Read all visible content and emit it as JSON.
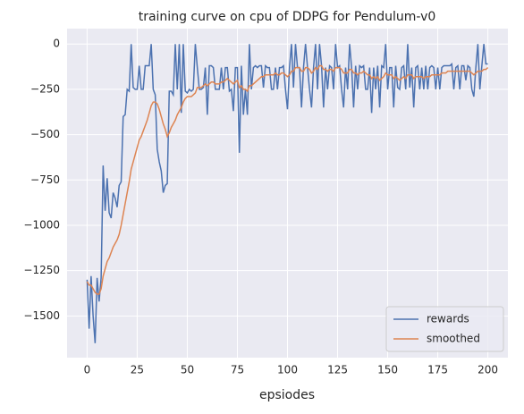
{
  "chart_data": {
    "type": "line",
    "title": "training curve on cpu of DDPG for Pendulum-v0",
    "x_label": "epsiodes",
    "x": [
      0,
      1,
      2,
      3,
      4,
      5,
      6,
      7,
      8,
      9,
      10,
      11,
      12,
      13,
      14,
      15,
      16,
      17,
      18,
      19,
      20,
      21,
      22,
      23,
      24,
      25,
      26,
      27,
      28,
      29,
      30,
      31,
      32,
      33,
      34,
      35,
      36,
      37,
      38,
      39,
      40,
      41,
      42,
      43,
      44,
      45,
      46,
      47,
      48,
      49,
      50,
      51,
      52,
      53,
      54,
      55,
      56,
      57,
      58,
      59,
      60,
      61,
      62,
      63,
      64,
      65,
      66,
      67,
      68,
      69,
      70,
      71,
      72,
      73,
      74,
      75,
      76,
      77,
      78,
      79,
      80,
      81,
      82,
      83,
      84,
      85,
      86,
      87,
      88,
      89,
      90,
      91,
      92,
      93,
      94,
      95,
      96,
      97,
      98,
      99,
      100,
      101,
      102,
      103,
      104,
      105,
      106,
      107,
      108,
      109,
      110,
      111,
      112,
      113,
      114,
      115,
      116,
      117,
      118,
      119,
      120,
      121,
      122,
      123,
      124,
      125,
      126,
      127,
      128,
      129,
      130,
      131,
      132,
      133,
      134,
      135,
      136,
      137,
      138,
      139,
      140,
      141,
      142,
      143,
      144,
      145,
      146,
      147,
      148,
      149,
      150,
      151,
      152,
      153,
      154,
      155,
      156,
      157,
      158,
      159,
      160,
      161,
      162,
      163,
      164,
      165,
      166,
      167,
      168,
      169,
      170,
      171,
      172,
      173,
      174,
      175,
      176,
      177,
      178,
      179,
      180,
      181,
      182,
      183,
      184,
      185,
      186,
      187,
      188,
      189,
      190,
      191,
      192,
      193,
      194,
      195,
      196,
      197,
      198,
      199,
      200
    ],
    "series": [
      {
        "name": "rewards",
        "color": "#4c72b0",
        "values": [
          -1300,
          -1570,
          -1280,
          -1500,
          -1650,
          -1290,
          -1420,
          -1290,
          -670,
          -920,
          -740,
          -930,
          -960,
          -820,
          -850,
          -900,
          -780,
          -760,
          -400,
          -390,
          -250,
          -260,
          0,
          -240,
          -250,
          -250,
          -120,
          -250,
          -250,
          -120,
          -120,
          -120,
          0,
          -250,
          -280,
          -580,
          -650,
          -700,
          -820,
          -780,
          -770,
          -260,
          -260,
          -280,
          0,
          -250,
          0,
          -380,
          0,
          -260,
          -270,
          -250,
          -260,
          -250,
          0,
          -130,
          -250,
          -250,
          -240,
          -130,
          -390,
          -120,
          -120,
          -130,
          -250,
          -250,
          -250,
          -130,
          -250,
          -130,
          -130,
          -260,
          -250,
          -370,
          -130,
          -130,
          -600,
          -120,
          -390,
          -250,
          -390,
          0,
          -250,
          -130,
          -120,
          -130,
          -120,
          -120,
          -240,
          -120,
          -130,
          -130,
          -250,
          -250,
          -130,
          -250,
          -130,
          -130,
          -120,
          -250,
          -360,
          -130,
          0,
          -240,
          0,
          -130,
          -130,
          -350,
          -130,
          0,
          -130,
          -250,
          -350,
          -130,
          0,
          -250,
          0,
          -120,
          -350,
          -130,
          -250,
          -120,
          -130,
          -250,
          0,
          -130,
          -120,
          -250,
          -350,
          -130,
          -250,
          0,
          -130,
          -350,
          -120,
          -250,
          -120,
          -130,
          -120,
          -250,
          -250,
          -130,
          -380,
          -130,
          -250,
          -120,
          -350,
          -120,
          -130,
          0,
          -250,
          -130,
          -130,
          -350,
          -120,
          -240,
          -250,
          -130,
          -120,
          -250,
          0,
          -240,
          -130,
          -350,
          -130,
          -120,
          -250,
          -130,
          -250,
          -120,
          -250,
          -130,
          -120,
          -130,
          -250,
          -130,
          -250,
          -130,
          -120,
          -120,
          -120,
          -120,
          -110,
          -250,
          -130,
          -120,
          -250,
          -120,
          -120,
          -200,
          -120,
          -130,
          -250,
          -290,
          -130,
          0,
          -250,
          -120,
          0,
          -110,
          -110
        ]
      },
      {
        "name": "smoothed",
        "color": "#dd8452",
        "values": [
          -1310,
          -1330,
          -1330,
          -1350,
          -1370,
          -1380,
          -1380,
          -1350,
          -1280,
          -1240,
          -1200,
          -1180,
          -1150,
          -1120,
          -1100,
          -1080,
          -1050,
          -1000,
          -940,
          -880,
          -820,
          -760,
          -690,
          -650,
          -610,
          -570,
          -530,
          -510,
          -480,
          -450,
          -420,
          -380,
          -340,
          -320,
          -320,
          -330,
          -360,
          -400,
          -440,
          -470,
          -510,
          -490,
          -460,
          -440,
          -420,
          -390,
          -370,
          -350,
          -320,
          -300,
          -290,
          -290,
          -290,
          -280,
          -270,
          -240,
          -240,
          -240,
          -230,
          -220,
          -230,
          -220,
          -210,
          -210,
          -220,
          -220,
          -220,
          -210,
          -210,
          -200,
          -190,
          -200,
          -210,
          -220,
          -210,
          -200,
          -240,
          -230,
          -250,
          -250,
          -260,
          -230,
          -230,
          -220,
          -210,
          -200,
          -190,
          -180,
          -180,
          -170,
          -170,
          -170,
          -170,
          -170,
          -160,
          -170,
          -170,
          -160,
          -160,
          -170,
          -180,
          -170,
          -150,
          -150,
          -130,
          -130,
          -130,
          -150,
          -150,
          -130,
          -130,
          -140,
          -160,
          -150,
          -130,
          -140,
          -120,
          -120,
          -140,
          -140,
          -150,
          -140,
          -140,
          -150,
          -130,
          -130,
          -130,
          -140,
          -160,
          -160,
          -160,
          -140,
          -140,
          -160,
          -160,
          -170,
          -160,
          -160,
          -150,
          -160,
          -170,
          -170,
          -190,
          -180,
          -190,
          -180,
          -200,
          -190,
          -180,
          -160,
          -170,
          -170,
          -170,
          -190,
          -180,
          -190,
          -200,
          -190,
          -180,
          -190,
          -170,
          -170,
          -170,
          -190,
          -180,
          -180,
          -180,
          -180,
          -190,
          -180,
          -180,
          -180,
          -170,
          -170,
          -170,
          -170,
          -170,
          -160,
          -160,
          -160,
          -150,
          -150,
          -150,
          -150,
          -150,
          -150,
          -150,
          -150,
          -150,
          -150,
          -150,
          -150,
          -160,
          -170,
          -160,
          -150,
          -150,
          -150,
          -140,
          -140,
          -130
        ]
      }
    ],
    "xlim": [
      -10,
      210
    ],
    "xticks": [
      0,
      25,
      50,
      75,
      100,
      125,
      150,
      175,
      200
    ],
    "ylim": [
      -1730,
      85
    ],
    "yticks": [
      0,
      {
        "value": -250,
        "label": "−250"
      },
      {
        "value": -500,
        "label": "−500"
      },
      {
        "value": -750,
        "label": "−750"
      },
      {
        "value": -1000,
        "label": "−1000"
      },
      {
        "value": -1250,
        "label": "−1250"
      },
      {
        "value": -1500,
        "label": "−1500"
      }
    ],
    "grid": true,
    "legend": "lower right"
  }
}
